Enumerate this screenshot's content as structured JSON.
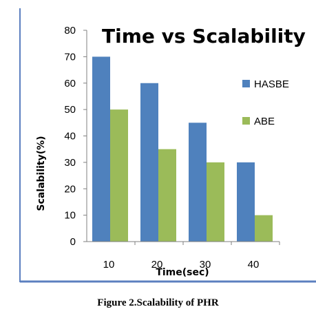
{
  "chart_data": {
    "type": "bar",
    "title": "Time vs Scalability",
    "xlabel": "Time(sec)",
    "ylabel": "Scalability(%)",
    "categories": [
      "10",
      "20",
      "30",
      "40"
    ],
    "ylim": [
      0,
      80
    ],
    "yticks": [
      "0",
      "10",
      "20",
      "30",
      "40",
      "50",
      "60",
      "70",
      "80"
    ],
    "grid": false,
    "legend_position": "right",
    "series": [
      {
        "name": "HASBE",
        "values": [
          70,
          60,
          45,
          30
        ],
        "color": "#4f81bd"
      },
      {
        "name": "ABE",
        "values": [
          50,
          35,
          30,
          10
        ],
        "color": "#9bbb59"
      }
    ]
  },
  "caption": "Figure 2.Scalability of PHR",
  "colors": {
    "frame_border": "#5b7fbf",
    "axis": "#7f7f7f"
  }
}
